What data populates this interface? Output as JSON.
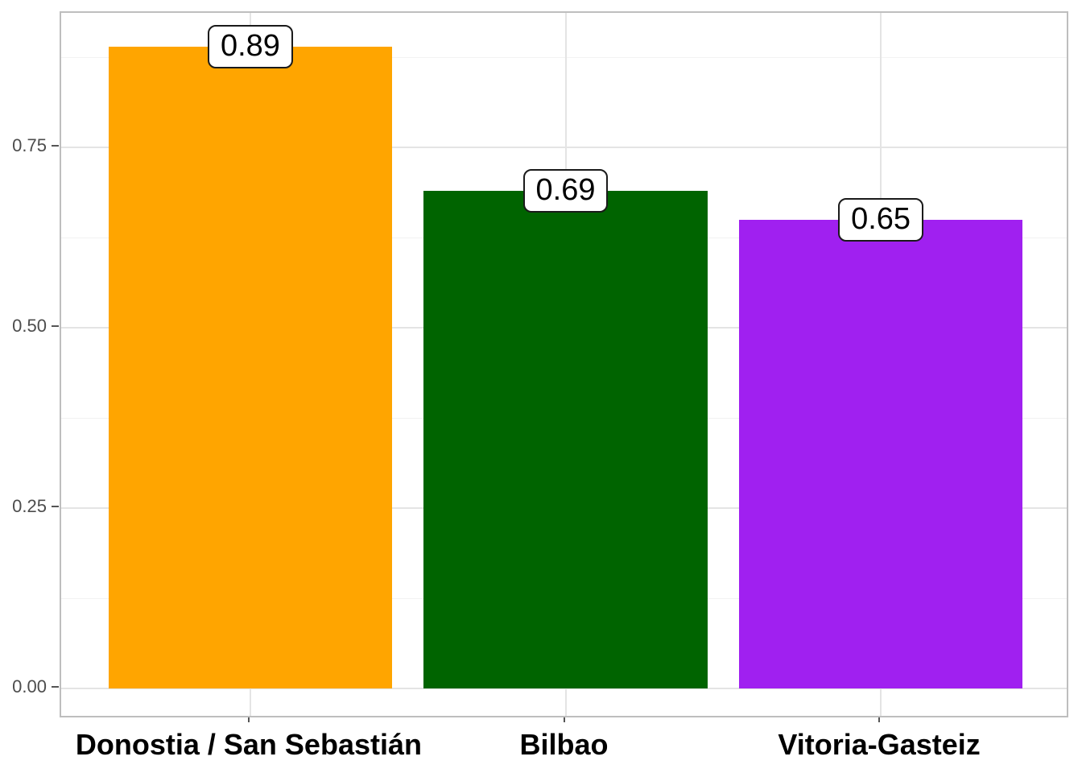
{
  "chart_data": {
    "type": "bar",
    "title": "",
    "xlabel": "",
    "ylabel": "",
    "categories": [
      "Donostia / San Sebastián",
      "Bilbao",
      "Vitoria-Gasteiz"
    ],
    "values": [
      0.89,
      0.69,
      0.65
    ],
    "value_labels": [
      "0.89",
      "0.69",
      "0.65"
    ],
    "bar_colors": [
      "#FFA500",
      "#006400",
      "#A020F0"
    ],
    "ylim": [
      -0.045,
      0.936
    ],
    "y_major_ticks": [
      0,
      0.25,
      0.5,
      0.75
    ],
    "y_tick_labels": [
      "0.00",
      "0.25",
      "0.50",
      "0.75"
    ],
    "y_minor_ticks": [
      0.125,
      0.375,
      0.625,
      0.875
    ],
    "grid": "on",
    "legend": "none",
    "style": {
      "background": "#FFFFFF",
      "panel_border": "#BEBEBE",
      "grid_major_color": "#E4E4E4",
      "grid_minor_color": "#F2F2F2",
      "axis_tick_color": "#555555",
      "y_tick_text_color": "#4D4D4D",
      "x_label_color": "#000000",
      "value_label_fill": "#FFFFFF",
      "value_label_border": "#1A1A1A",
      "value_label_text": "#000000"
    }
  }
}
